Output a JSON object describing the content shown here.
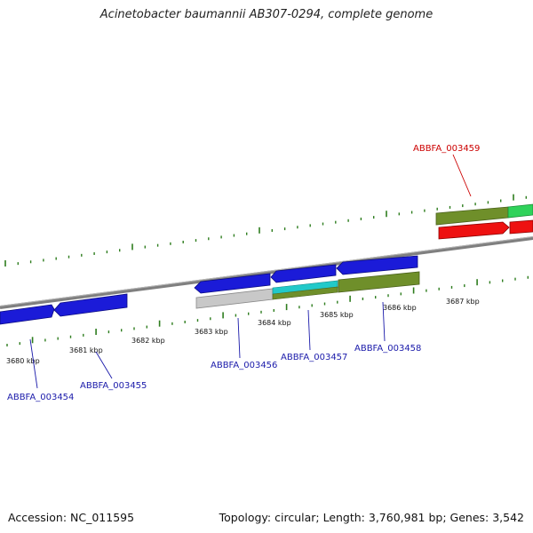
{
  "title": "Acinetobacter baumannii AB307-0294, complete genome",
  "footer": {
    "accession": "Accession: NC_011595",
    "summary": "Topology: circular; Length: 3,760,981 bp; Genes: 3,542"
  },
  "colors": {
    "backbone": "#7f7f7f",
    "tick": "#2e7d1e",
    "gene_label": "#1a1aaa",
    "highlight_label": "#cc0000"
  },
  "kbp_labels": [
    "3680 kbp",
    "3681 kbp",
    "3682 kbp",
    "3683 kbp",
    "3684 kbp",
    "3685 kbp",
    "3686 kbp",
    "3687 kbp"
  ],
  "gene_labels": [
    {
      "id": "ABBFA_003454",
      "highlight": false
    },
    {
      "id": "ABBFA_003455",
      "highlight": false
    },
    {
      "id": "ABBFA_003456",
      "highlight": false
    },
    {
      "id": "ABBFA_003457",
      "highlight": false
    },
    {
      "id": "ABBFA_003458",
      "highlight": false
    },
    {
      "id": "ABBFA_003459",
      "highlight": true
    }
  ]
}
